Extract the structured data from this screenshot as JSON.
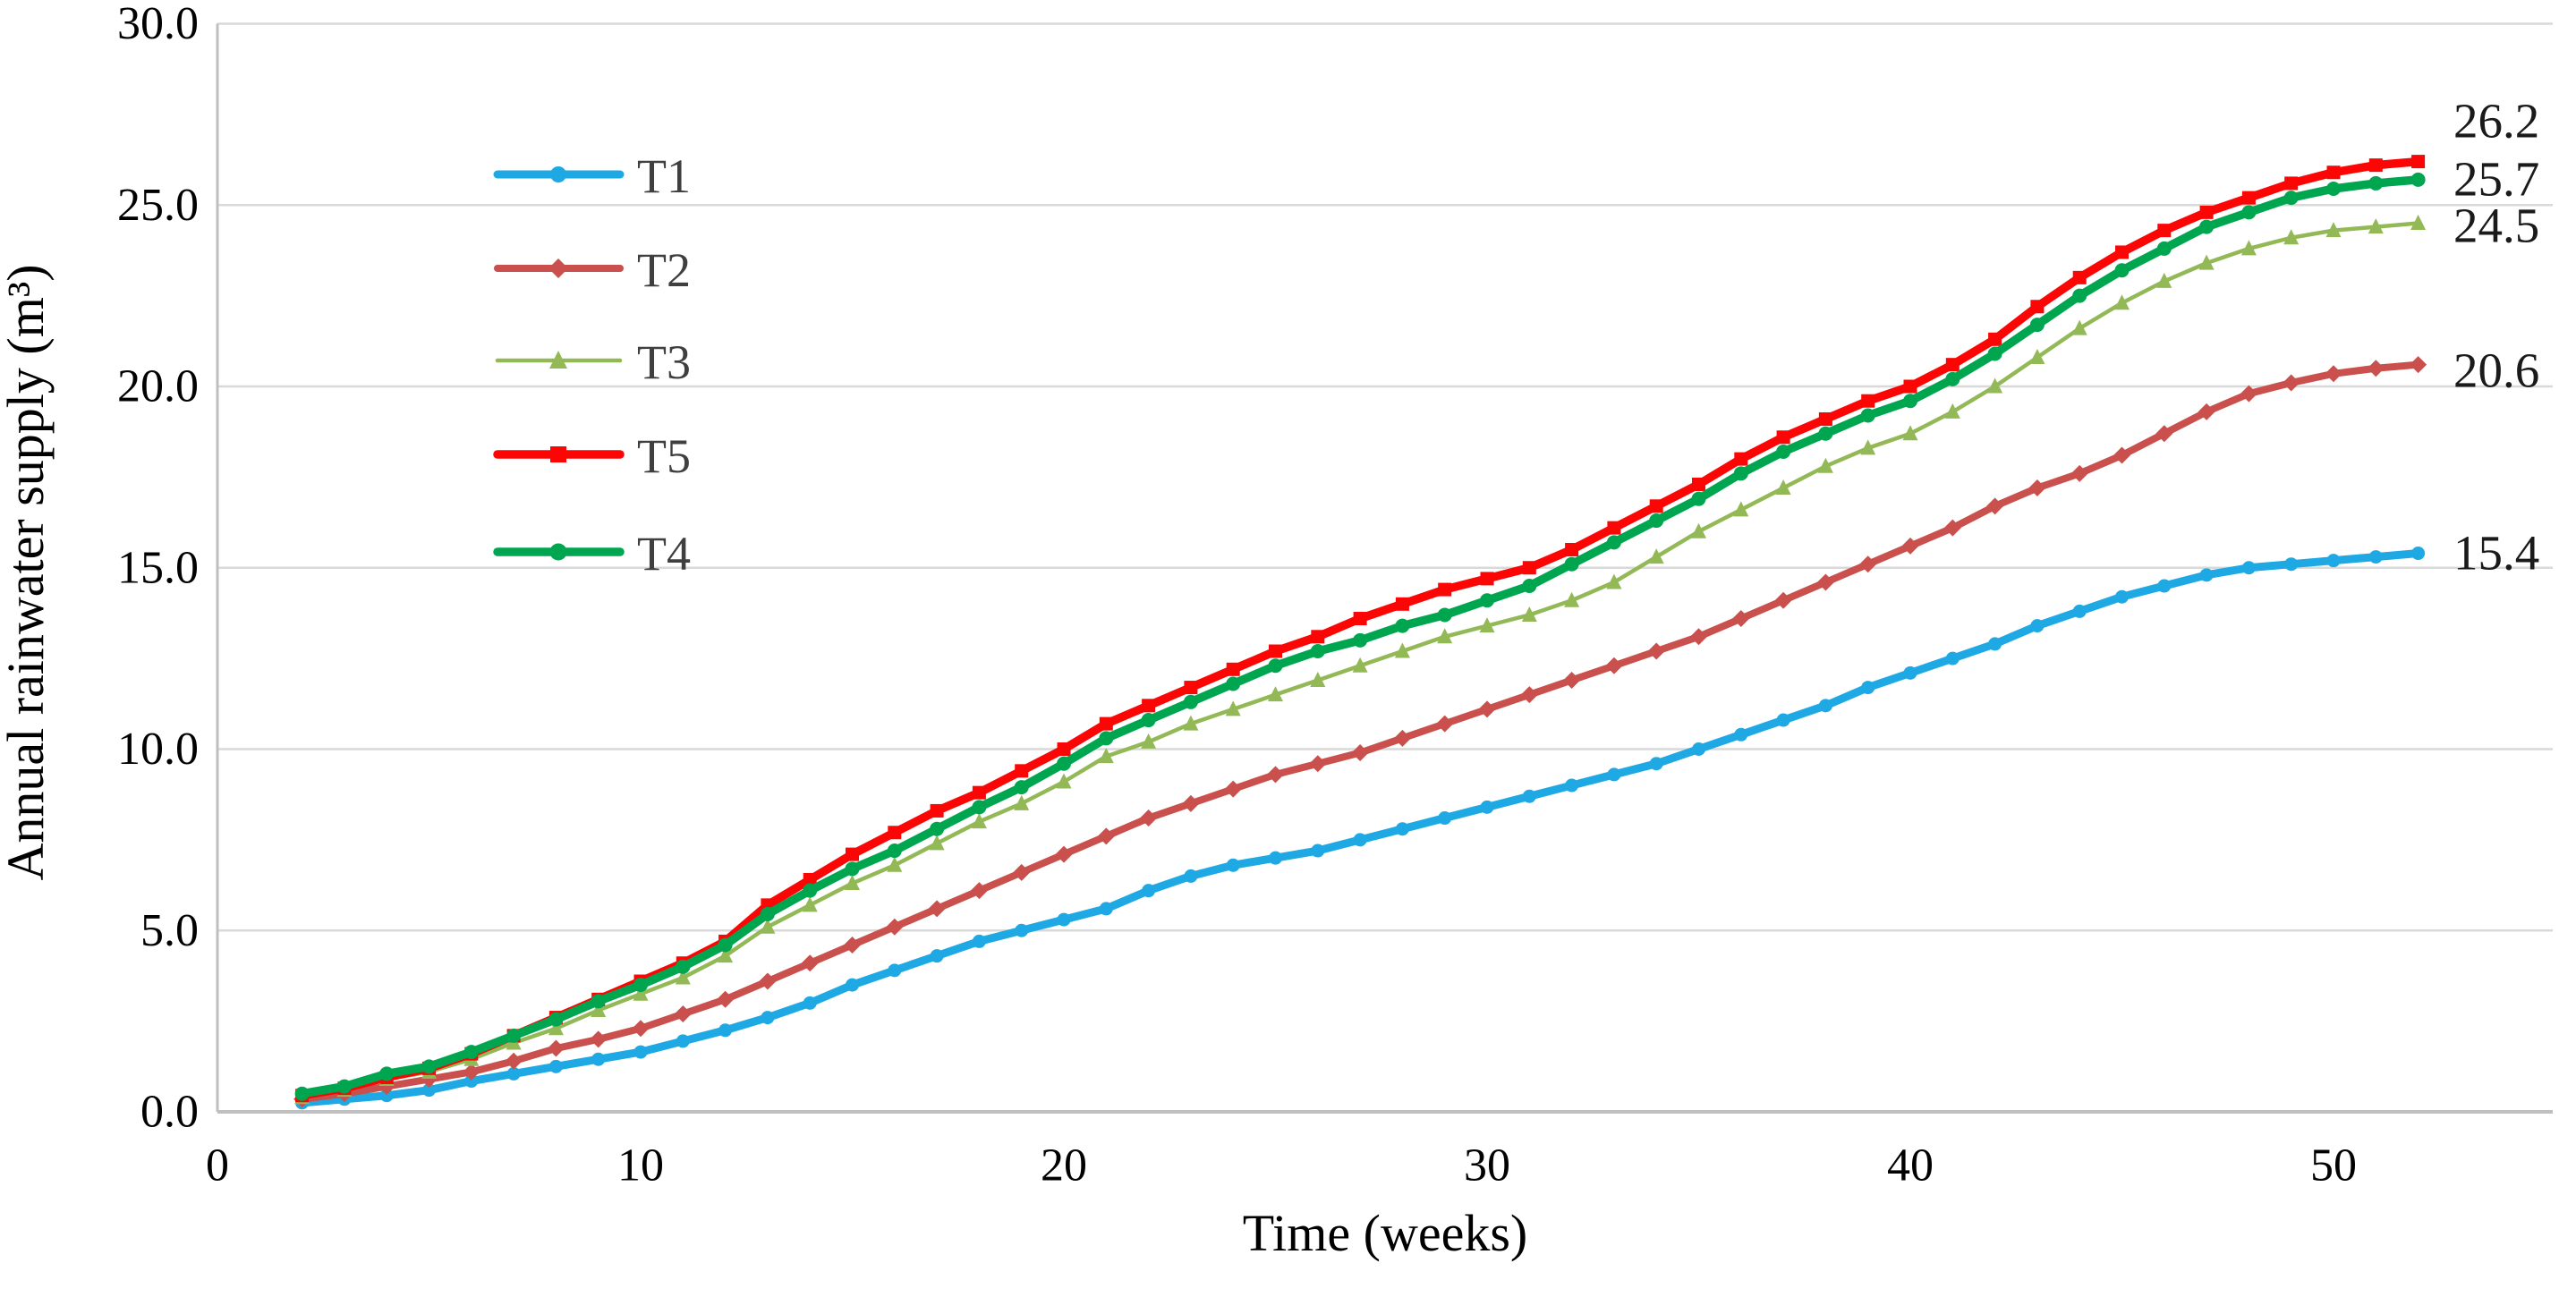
{
  "chart_data": {
    "type": "line",
    "title": "",
    "xlabel": "Time (weeks)",
    "ylabel": "Annual rainwater supply (m³)",
    "xlim": [
      0,
      55
    ],
    "ylim": [
      0,
      30
    ],
    "x_ticks": [
      0,
      10,
      20,
      30,
      40,
      50
    ],
    "y_ticks": [
      "0.0",
      "5.0",
      "10.0",
      "15.0",
      "20.0",
      "25.0",
      "30.0"
    ],
    "grid": "horizontal",
    "legend_position": "upper-left-inside",
    "legend_order": [
      "T1",
      "T2",
      "T3",
      "T5",
      "T4"
    ],
    "x_weeks": [
      2,
      3,
      4,
      5,
      6,
      7,
      8,
      9,
      10,
      11,
      12,
      13,
      14,
      15,
      16,
      17,
      18,
      19,
      20,
      21,
      22,
      23,
      24,
      25,
      26,
      27,
      28,
      29,
      30,
      31,
      32,
      33,
      34,
      35,
      36,
      37,
      38,
      39,
      40,
      41,
      42,
      43,
      44,
      45,
      46,
      47,
      48,
      49,
      50,
      51,
      52
    ],
    "series": [
      {
        "name": "T1",
        "color": "#1FA9E4",
        "marker": "circle",
        "end_label": "15.4",
        "values": [
          0.25,
          0.35,
          0.45,
          0.6,
          0.85,
          1.05,
          1.25,
          1.45,
          1.65,
          1.95,
          2.25,
          2.6,
          3.0,
          3.5,
          3.9,
          4.3,
          4.7,
          5.0,
          5.3,
          5.6,
          6.1,
          6.5,
          6.8,
          7.0,
          7.2,
          7.5,
          7.8,
          8.1,
          8.4,
          8.7,
          9.0,
          9.3,
          9.6,
          10.0,
          10.4,
          10.8,
          11.2,
          11.7,
          12.1,
          12.5,
          12.9,
          13.4,
          13.8,
          14.2,
          14.5,
          14.8,
          15.0,
          15.1,
          15.2,
          15.3,
          15.4
        ]
      },
      {
        "name": "T2",
        "color": "#C9504C",
        "marker": "diamond",
        "end_label": "20.6",
        "values": [
          0.35,
          0.5,
          0.7,
          0.9,
          1.1,
          1.4,
          1.75,
          2.0,
          2.3,
          2.7,
          3.1,
          3.6,
          4.1,
          4.6,
          5.1,
          5.6,
          6.1,
          6.6,
          7.1,
          7.6,
          8.1,
          8.5,
          8.9,
          9.3,
          9.6,
          9.9,
          10.3,
          10.7,
          11.1,
          11.5,
          11.9,
          12.3,
          12.7,
          13.1,
          13.6,
          14.1,
          14.6,
          15.1,
          15.6,
          16.1,
          16.7,
          17.2,
          17.6,
          18.1,
          18.7,
          19.3,
          19.8,
          20.1,
          20.35,
          20.5,
          20.6
        ]
      },
      {
        "name": "T3",
        "color": "#93B957",
        "marker": "triangle",
        "end_label": "24.5",
        "values": [
          0.4,
          0.6,
          0.9,
          1.1,
          1.45,
          1.9,
          2.3,
          2.8,
          3.25,
          3.7,
          4.3,
          5.1,
          5.7,
          6.3,
          6.8,
          7.4,
          8.0,
          8.5,
          9.1,
          9.8,
          10.2,
          10.7,
          11.1,
          11.5,
          11.9,
          12.3,
          12.7,
          13.1,
          13.4,
          13.7,
          14.1,
          14.6,
          15.3,
          16.0,
          16.6,
          17.2,
          17.8,
          18.3,
          18.7,
          19.3,
          20.0,
          20.8,
          21.6,
          22.3,
          22.9,
          23.4,
          23.8,
          24.1,
          24.3,
          24.4,
          24.5
        ]
      },
      {
        "name": "T5",
        "color": "#FB0505",
        "marker": "square",
        "end_label": "26.2",
        "values": [
          0.45,
          0.65,
          0.95,
          1.2,
          1.6,
          2.1,
          2.6,
          3.1,
          3.6,
          4.1,
          4.7,
          5.7,
          6.4,
          7.1,
          7.7,
          8.3,
          8.8,
          9.4,
          10.0,
          10.7,
          11.2,
          11.7,
          12.2,
          12.7,
          13.1,
          13.6,
          14.0,
          14.4,
          14.7,
          15.0,
          15.5,
          16.1,
          16.7,
          17.3,
          18.0,
          18.6,
          19.1,
          19.6,
          20.0,
          20.6,
          21.3,
          22.2,
          23.0,
          23.7,
          24.3,
          24.8,
          25.2,
          25.6,
          25.9,
          26.1,
          26.2
        ]
      },
      {
        "name": "T4",
        "color": "#00A64F",
        "marker": "circle",
        "end_label": "25.7",
        "values": [
          0.5,
          0.7,
          1.05,
          1.25,
          1.65,
          2.1,
          2.55,
          3.05,
          3.5,
          4.0,
          4.6,
          5.45,
          6.1,
          6.7,
          7.2,
          7.8,
          8.4,
          8.95,
          9.6,
          10.3,
          10.8,
          11.3,
          11.8,
          12.3,
          12.7,
          13.0,
          13.4,
          13.7,
          14.1,
          14.5,
          15.1,
          15.7,
          16.3,
          16.9,
          17.6,
          18.2,
          18.7,
          19.2,
          19.6,
          20.2,
          20.9,
          21.7,
          22.5,
          23.2,
          23.8,
          24.4,
          24.8,
          25.2,
          25.45,
          25.6,
          25.7
        ]
      }
    ]
  },
  "colors": {
    "background": "#FFFFFF",
    "gridline": "#D9D9D9",
    "axis_line": "#BFBFBF",
    "tick_label": "#000000",
    "legend_label": "#3F3F3F",
    "end_label": "#1A1A1A"
  }
}
